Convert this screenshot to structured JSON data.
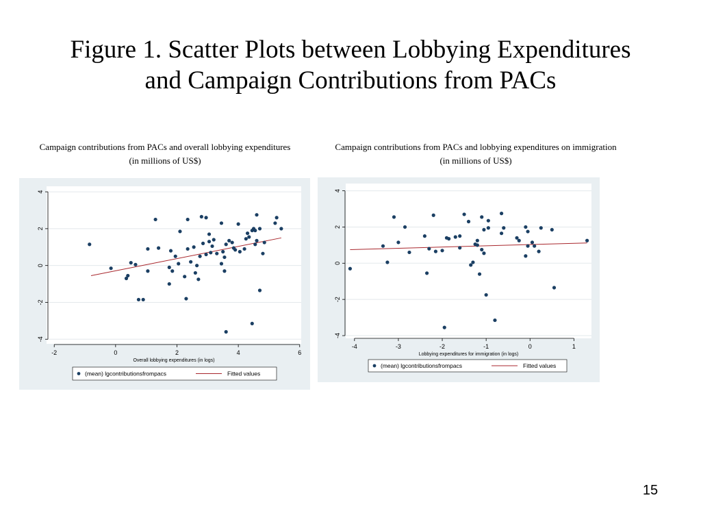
{
  "slide": {
    "title_line1": "Figure 1. Scatter Plots between Lobbying Expenditures",
    "title_line2": "and Campaign Contributions from PACs",
    "page_number": "15"
  },
  "colors": {
    "panel_bg": "#e9eff2",
    "plot_bg": "#ffffff",
    "point": "#1b3f63",
    "fit_line": "#a8262c"
  },
  "chart_data": [
    {
      "type": "scatter",
      "caption_line1": "Campaign contributions from PACs and overall lobbying expenditures",
      "caption_line2": "(in millions of US$)",
      "xlabel": "Overall lobbying expenditures (in logs)",
      "ylabel": "",
      "xlim": [
        -2.25,
        6.05
      ],
      "ylim": [
        -4.25,
        4.3
      ],
      "xticks": [
        -2,
        0,
        2,
        4,
        6
      ],
      "yticks": [
        -4,
        -2,
        0,
        2,
        4
      ],
      "grid": "horizontal",
      "legend": {
        "position": "bottom",
        "entries": [
          "(mean) lgcontributionsfrompacs",
          "Fitted values"
        ]
      },
      "series": [
        {
          "name": "(mean) lgcontributionsfrompacs",
          "kind": "scatter",
          "points": [
            [
              -0.85,
              1.15
            ],
            [
              -0.15,
              -0.15
            ],
            [
              0.35,
              -0.7
            ],
            [
              0.4,
              -0.55
            ],
            [
              0.5,
              0.15
            ],
            [
              0.65,
              0.05
            ],
            [
              0.75,
              -1.85
            ],
            [
              0.9,
              -1.85
            ],
            [
              1.05,
              0.9
            ],
            [
              1.05,
              -0.3
            ],
            [
              1.3,
              2.5
            ],
            [
              1.4,
              0.95
            ],
            [
              1.75,
              -0.1
            ],
            [
              1.75,
              -1.0
            ],
            [
              1.8,
              0.8
            ],
            [
              1.85,
              -0.3
            ],
            [
              1.95,
              0.5
            ],
            [
              2.05,
              0.1
            ],
            [
              2.1,
              1.85
            ],
            [
              2.25,
              -0.6
            ],
            [
              2.3,
              -1.8
            ],
            [
              2.35,
              0.9
            ],
            [
              2.35,
              2.5
            ],
            [
              2.45,
              0.2
            ],
            [
              2.55,
              1.0
            ],
            [
              2.6,
              -0.4
            ],
            [
              2.65,
              0.0
            ],
            [
              2.7,
              -0.75
            ],
            [
              2.75,
              0.5
            ],
            [
              2.8,
              2.65
            ],
            [
              2.85,
              1.2
            ],
            [
              2.95,
              2.6
            ],
            [
              2.95,
              0.6
            ],
            [
              3.05,
              1.7
            ],
            [
              3.05,
              1.3
            ],
            [
              3.1,
              0.7
            ],
            [
              3.15,
              1.05
            ],
            [
              3.2,
              1.4
            ],
            [
              3.3,
              0.65
            ],
            [
              3.45,
              2.3
            ],
            [
              3.45,
              0.1
            ],
            [
              3.5,
              0.75
            ],
            [
              3.55,
              -0.3
            ],
            [
              3.55,
              0.45
            ],
            [
              3.6,
              1.15
            ],
            [
              3.6,
              -3.6
            ],
            [
              3.7,
              1.35
            ],
            [
              3.8,
              1.25
            ],
            [
              3.85,
              0.95
            ],
            [
              3.9,
              0.85
            ],
            [
              4.0,
              2.25
            ],
            [
              4.05,
              0.75
            ],
            [
              4.2,
              0.9
            ],
            [
              4.25,
              1.45
            ],
            [
              4.3,
              1.75
            ],
            [
              4.35,
              1.55
            ],
            [
              4.45,
              1.9
            ],
            [
              4.45,
              -3.15
            ],
            [
              4.5,
              2.0
            ],
            [
              4.55,
              1.15
            ],
            [
              4.55,
              1.9
            ],
            [
              4.6,
              1.35
            ],
            [
              4.6,
              2.75
            ],
            [
              4.7,
              2.0
            ],
            [
              4.7,
              -1.35
            ],
            [
              4.8,
              0.65
            ],
            [
              4.85,
              1.25
            ],
            [
              5.2,
              2.3
            ],
            [
              5.25,
              2.6
            ],
            [
              5.4,
              2.0
            ]
          ]
        },
        {
          "name": "Fitted values",
          "kind": "line",
          "points": [
            [
              -0.8,
              -0.55
            ],
            [
              5.4,
              1.5
            ]
          ]
        }
      ]
    },
    {
      "type": "scatter",
      "caption_line1": "Campaign contributions from PACs and lobbying expenditures on immigration",
      "caption_line2": "(in millions of US$)",
      "xlabel": "Lobbying expenditures for immigration (in logs)",
      "ylabel": "",
      "xlim": [
        -4.2,
        1.4
      ],
      "ylim": [
        -4.15,
        4.4
      ],
      "xticks": [
        -4,
        -3,
        -2,
        -1,
        0,
        1
      ],
      "yticks": [
        -4,
        -2,
        0,
        2,
        4
      ],
      "grid": "horizontal",
      "legend": {
        "position": "bottom",
        "entries": [
          "(mean) lgcontributionsfrompacs",
          "Fitted values"
        ]
      },
      "series": [
        {
          "name": "(mean) lgcontributionsfrompacs",
          "kind": "scatter",
          "points": [
            [
              -4.1,
              -0.3
            ],
            [
              -3.35,
              0.95
            ],
            [
              -3.25,
              0.05
            ],
            [
              -3.1,
              2.55
            ],
            [
              -3.0,
              1.15
            ],
            [
              -2.85,
              2.0
            ],
            [
              -2.75,
              0.6
            ],
            [
              -2.4,
              1.5
            ],
            [
              -2.35,
              -0.55
            ],
            [
              -2.3,
              0.8
            ],
            [
              -2.2,
              2.65
            ],
            [
              -2.15,
              0.65
            ],
            [
              -2.0,
              0.7
            ],
            [
              -1.95,
              -3.55
            ],
            [
              -1.9,
              1.4
            ],
            [
              -1.85,
              1.35
            ],
            [
              -1.7,
              1.45
            ],
            [
              -1.6,
              1.5
            ],
            [
              -1.6,
              0.85
            ],
            [
              -1.5,
              2.7
            ],
            [
              -1.4,
              2.3
            ],
            [
              -1.35,
              -0.1
            ],
            [
              -1.3,
              0.05
            ],
            [
              -1.25,
              1.05
            ],
            [
              -1.2,
              1.0
            ],
            [
              -1.2,
              1.25
            ],
            [
              -1.15,
              -0.6
            ],
            [
              -1.1,
              0.75
            ],
            [
              -1.1,
              2.55
            ],
            [
              -1.05,
              0.55
            ],
            [
              -1.05,
              1.85
            ],
            [
              -1.0,
              -1.75
            ],
            [
              -0.95,
              2.35
            ],
            [
              -0.95,
              1.95
            ],
            [
              -0.8,
              -3.15
            ],
            [
              -0.65,
              2.75
            ],
            [
              -0.65,
              1.65
            ],
            [
              -0.6,
              1.95
            ],
            [
              -0.3,
              1.4
            ],
            [
              -0.25,
              1.25
            ],
            [
              -0.1,
              2.0
            ],
            [
              -0.1,
              0.4
            ],
            [
              -0.05,
              0.95
            ],
            [
              -0.05,
              1.75
            ],
            [
              0.05,
              1.15
            ],
            [
              0.1,
              0.95
            ],
            [
              0.2,
              0.65
            ],
            [
              0.25,
              1.95
            ],
            [
              0.5,
              1.85
            ],
            [
              0.55,
              -1.35
            ],
            [
              1.3,
              1.25
            ]
          ]
        },
        {
          "name": "Fitted values",
          "kind": "line",
          "points": [
            [
              -4.1,
              0.75
            ],
            [
              1.3,
              1.12
            ]
          ]
        }
      ]
    }
  ]
}
